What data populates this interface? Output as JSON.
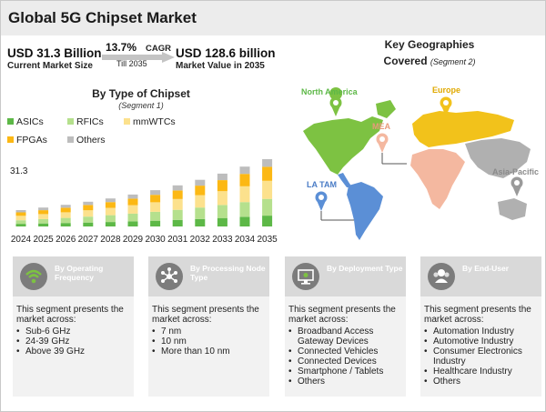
{
  "title": "Global 5G Chipset Market",
  "metrics": {
    "current_value": "USD 31.3 Billion",
    "current_label": "Current Market Size",
    "cagr_value": "13.7%",
    "cagr_label": "CAGR",
    "cagr_till": "Till 2035",
    "future_value": "USD 128.6 billion",
    "future_label": "Market Value in 2035"
  },
  "geographies": {
    "title": "Key Geographies",
    "title_line2": "Covered",
    "segment": "(Segment 2)",
    "regions": [
      {
        "name": "North America",
        "color": "#7dc242"
      },
      {
        "name": "Europe",
        "color": "#f2c21b"
      },
      {
        "name": "MEA",
        "color": "#f4b8a0"
      },
      {
        "name": "LA TAM",
        "color": "#5b8fd6"
      },
      {
        "name": "Asia-Pacific",
        "color": "#b0b0b0"
      }
    ]
  },
  "chart_data": {
    "type": "bar",
    "stacked": true,
    "title": "By Type of Chipset",
    "subtitle": "(Segment 1)",
    "categories": [
      "2024",
      "2025",
      "2026",
      "2027",
      "2028",
      "2029",
      "2030",
      "2031",
      "2032",
      "2033",
      "2034",
      "2035"
    ],
    "first_value_label": "31.3",
    "legend_placement": "top-left",
    "series": [
      {
        "name": "ASICs",
        "color": "#5db847",
        "values": [
          5.0,
          5.8,
          6.6,
          7.5,
          8.5,
          9.7,
          11.0,
          12.5,
          14.2,
          16.1,
          18.3,
          20.7
        ]
      },
      {
        "name": "RFICs",
        "color": "#b5e08d",
        "values": [
          6.9,
          8.2,
          9.7,
          11.3,
          13.0,
          14.9,
          17.0,
          19.3,
          21.9,
          24.8,
          28.2,
          32.0
        ]
      },
      {
        "name": "mmWTCs",
        "color": "#fce18d",
        "values": [
          8.4,
          9.6,
          10.9,
          12.4,
          14.1,
          16.1,
          18.3,
          20.8,
          23.6,
          26.8,
          30.4,
          34.5
        ]
      },
      {
        "name": "FPGAs",
        "color": "#fcb814",
        "values": [
          6.6,
          7.5,
          8.5,
          9.7,
          11.0,
          12.5,
          14.2,
          16.1,
          18.3,
          20.8,
          23.6,
          26.8
        ]
      },
      {
        "name": "Others",
        "color": "#bdbdbd",
        "values": [
          4.4,
          5.0,
          5.6,
          6.3,
          7.0,
          7.8,
          8.8,
          9.8,
          11.1,
          12.4,
          13.9,
          14.6
        ]
      }
    ]
  },
  "segments": [
    {
      "title": "By Operating Frequency",
      "icon": "wifi-icon",
      "intro": "This segment presents the market across:",
      "items": [
        "Sub-6 GHz",
        "24-39 GHz",
        "Above 39 GHz"
      ]
    },
    {
      "title": "By Processing Node Type",
      "icon": "network-nodes-icon",
      "intro": "This segment presents the market across:",
      "items": [
        "7 nm",
        "10 nm",
        "More than 10 nm"
      ]
    },
    {
      "title": "By Deployment Type",
      "icon": "deployment-monitor-icon",
      "intro": "This segment presents the market across:",
      "items": [
        "Broadband Access Gateway Devices",
        "Connected Vehicles",
        "Connected Devices",
        "Smartphone / Tablets",
        "Others"
      ]
    },
    {
      "title": "By End-User",
      "icon": "users-icon",
      "intro": "This segment presents the market across:",
      "items": [
        "Automation Industry",
        "Automotive Industry",
        "Consumer Electronics Industry",
        "Healthcare Industry",
        "Others"
      ]
    }
  ]
}
